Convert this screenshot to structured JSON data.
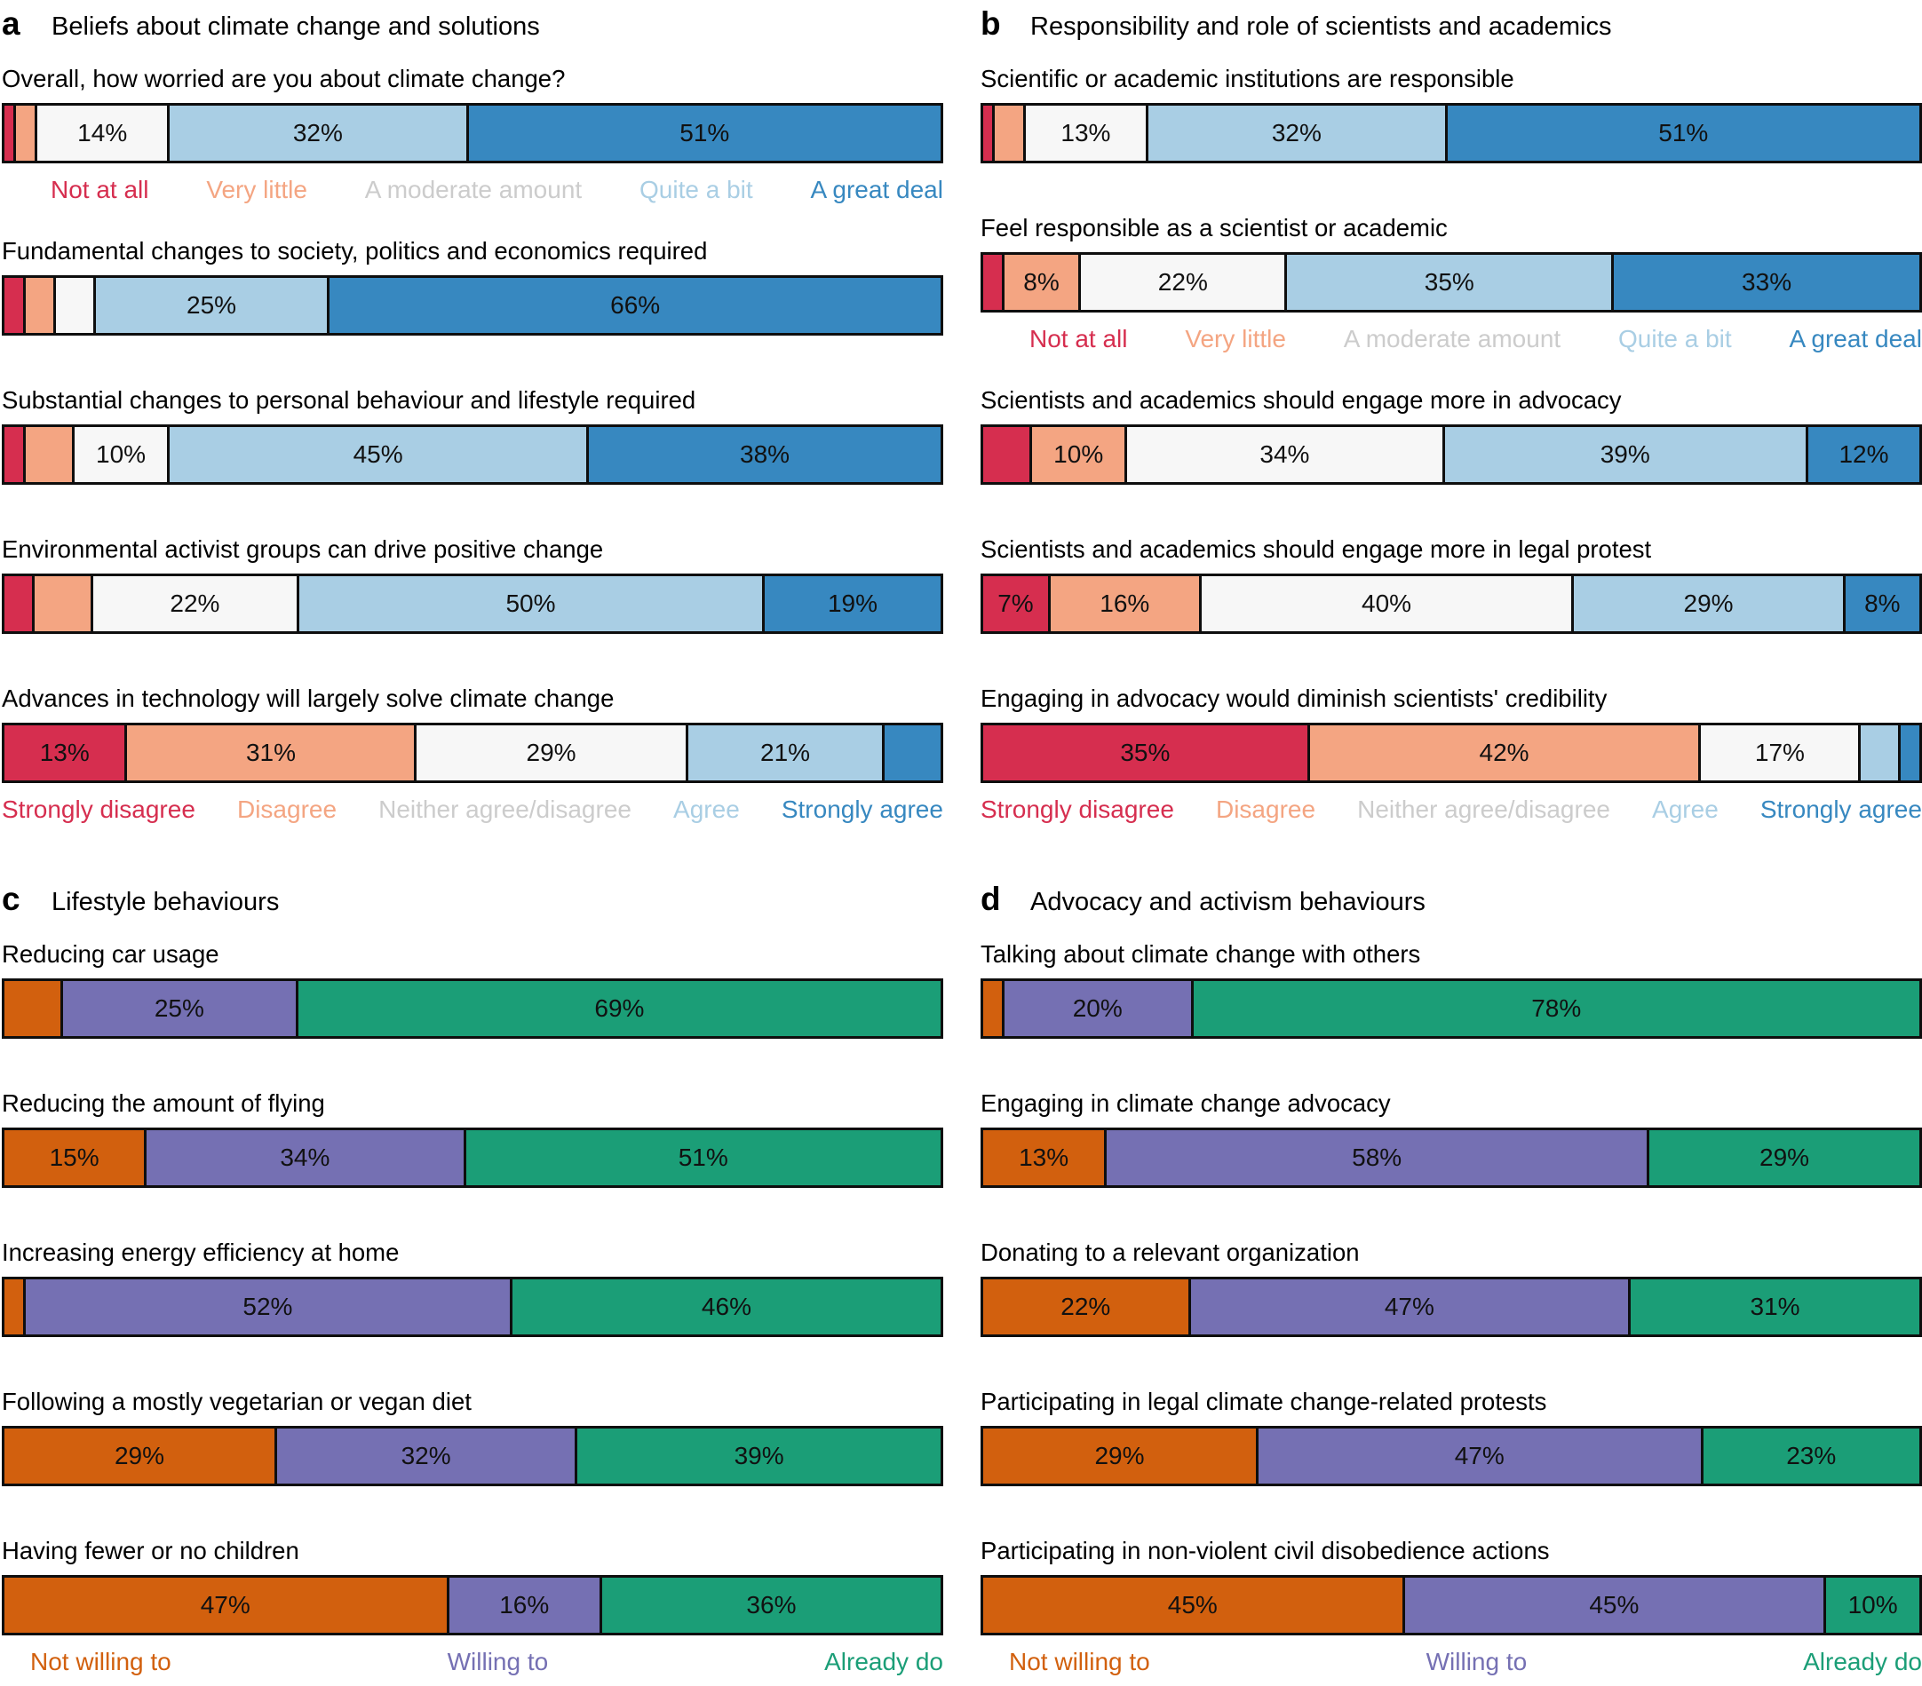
{
  "figure": {
    "background": "#ffffff",
    "bar_border_color": "#0e0e0e",
    "label_show_threshold_pct": 7
  },
  "series_colors": {
    "likert5": [
      "#d62e4f",
      "#f4a582",
      "#f7f7f7",
      "#a9cee4",
      "#3788c0"
    ],
    "willing3": [
      "#d2600e",
      "#7570b3",
      "#1b9e77"
    ]
  },
  "scales": {
    "frequency": {
      "indent": 55,
      "items": [
        {
          "label": "Not at all",
          "color": "#d62e4f"
        },
        {
          "label": "Very little",
          "color": "#f4a582"
        },
        {
          "label": "A moderate amount",
          "color": "#cccccc"
        },
        {
          "label": "Quite a bit",
          "color": "#a9cee4"
        },
        {
          "label": "A great deal",
          "color": "#3788c0"
        }
      ]
    },
    "agreement": {
      "indent": 0,
      "items": [
        {
          "label": "Strongly disagree",
          "color": "#d62e4f"
        },
        {
          "label": "Disagree",
          "color": "#f4a582"
        },
        {
          "label": "Neither agree/disagree",
          "color": "#cccccc"
        },
        {
          "label": "Agree",
          "color": "#a9cee4"
        },
        {
          "label": "Strongly agree",
          "color": "#3788c0"
        }
      ]
    },
    "willingness": {
      "indent": 32,
      "items": [
        {
          "label": "Not willing to",
          "color": "#d2600e"
        },
        {
          "label": "Willing to",
          "color": "#7570b3"
        },
        {
          "label": "Already do",
          "color": "#1b9e77"
        }
      ]
    }
  },
  "chart_data": [
    {
      "type": "bar",
      "stacked": true,
      "orientation": "horizontal",
      "panel": "a",
      "title": "Beliefs about climate change and solutions",
      "palette": "likert5",
      "unit": "%",
      "questions": [
        {
          "label": "Overall, how worried are you about climate change?",
          "scale": "frequency",
          "values": [
            1,
            2,
            14,
            32,
            51
          ],
          "legend_after": "frequency"
        },
        {
          "label": "Fundamental changes to society, politics and economics required",
          "scale": "agreement",
          "values": [
            2,
            3,
            4,
            25,
            66
          ],
          "legend_after": null
        },
        {
          "label": "Substantial changes to personal behaviour and lifestyle required",
          "scale": "agreement",
          "values": [
            2,
            5,
            10,
            45,
            38
          ],
          "legend_after": null
        },
        {
          "label": "Environmental activist groups can drive positive change",
          "scale": "agreement",
          "values": [
            3,
            6,
            22,
            50,
            19
          ],
          "legend_after": null
        },
        {
          "label": "Advances in technology will largely solve climate change",
          "scale": "agreement",
          "values": [
            13,
            31,
            29,
            21,
            6
          ],
          "legend_after": "agreement"
        }
      ]
    },
    {
      "type": "bar",
      "stacked": true,
      "orientation": "horizontal",
      "panel": "b",
      "title": "Responsibility and role of scientists and academics",
      "palette": "likert5",
      "unit": "%",
      "questions": [
        {
          "label": "Scientific or academic institutions are responsible",
          "scale": "frequency",
          "values": [
            1,
            3,
            13,
            32,
            51
          ],
          "legend_after": null
        },
        {
          "label": "Feel responsible as a scientist or academic",
          "scale": "frequency",
          "values": [
            2,
            8,
            22,
            35,
            33
          ],
          "legend_after": "frequency"
        },
        {
          "label": "Scientists and academics should engage more in advocacy",
          "scale": "agreement",
          "values": [
            5,
            10,
            34,
            39,
            12
          ],
          "legend_after": null
        },
        {
          "label": "Scientists and academics should engage more in legal protest",
          "scale": "agreement",
          "values": [
            7,
            16,
            40,
            29,
            8
          ],
          "legend_after": null
        },
        {
          "label": "Engaging in advocacy would diminish scientists' credibility",
          "scale": "agreement",
          "values": [
            35,
            42,
            17,
            4,
            2
          ],
          "legend_after": "agreement"
        }
      ]
    },
    {
      "type": "bar",
      "stacked": true,
      "orientation": "horizontal",
      "panel": "c",
      "title": "Lifestyle behaviours",
      "palette": "willing3",
      "unit": "%",
      "questions": [
        {
          "label": "Reducing car usage",
          "scale": "willingness",
          "values": [
            6,
            25,
            69
          ],
          "legend_after": null
        },
        {
          "label": "Reducing the amount of flying",
          "scale": "willingness",
          "values": [
            15,
            34,
            51
          ],
          "legend_after": null
        },
        {
          "label": "Increasing energy efficiency at home",
          "scale": "willingness",
          "values": [
            2,
            52,
            46
          ],
          "legend_after": null
        },
        {
          "label": "Following a mostly vegetarian or vegan diet",
          "scale": "willingness",
          "values": [
            29,
            32,
            39
          ],
          "legend_after": null
        },
        {
          "label": "Having fewer or no children",
          "scale": "willingness",
          "values": [
            47,
            16,
            36
          ],
          "legend_after": "willingness"
        }
      ]
    },
    {
      "type": "bar",
      "stacked": true,
      "orientation": "horizontal",
      "panel": "d",
      "title": "Advocacy and activism behaviours",
      "palette": "willing3",
      "unit": "%",
      "questions": [
        {
          "label": "Talking about climate change with others",
          "scale": "willingness",
          "values": [
            2,
            20,
            78
          ],
          "legend_after": null
        },
        {
          "label": "Engaging in climate change advocacy",
          "scale": "willingness",
          "values": [
            13,
            58,
            29
          ],
          "legend_after": null
        },
        {
          "label": "Donating to a relevant organization",
          "scale": "willingness",
          "values": [
            22,
            47,
            31
          ],
          "legend_after": null
        },
        {
          "label": "Participating in legal climate change-related protests",
          "scale": "willingness",
          "values": [
            29,
            47,
            23
          ],
          "legend_after": null
        },
        {
          "label": "Participating in non-violent civil disobedience actions",
          "scale": "willingness",
          "values": [
            45,
            45,
            10
          ],
          "legend_after": "willingness"
        }
      ]
    }
  ]
}
